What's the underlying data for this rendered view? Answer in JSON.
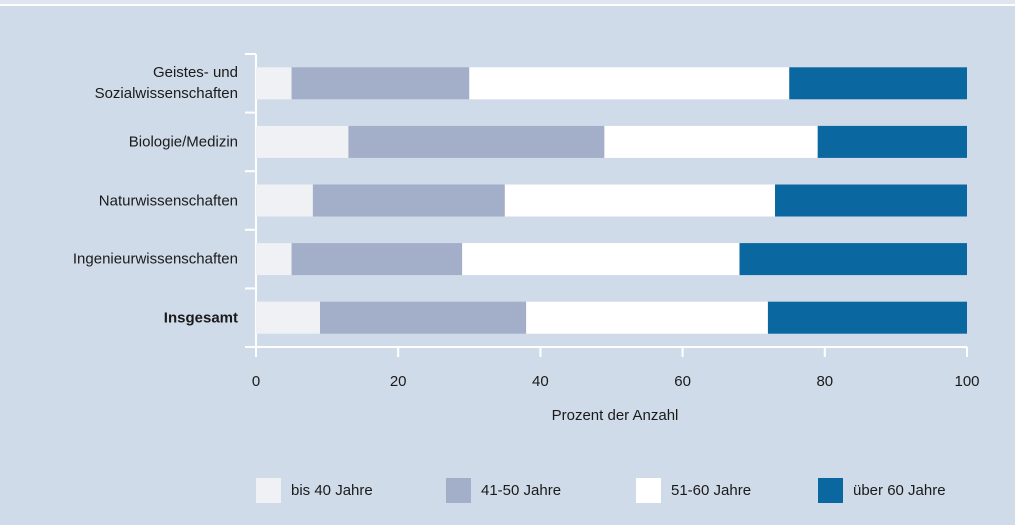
{
  "chart_data": {
    "type": "stacked_bar_horizontal",
    "categories": [
      "Geistes- und\nSozialwissenschaften",
      "Biologie/Medizin",
      "Naturwissenschaften",
      "Ingenieurwissenschaften",
      "Insgesamt"
    ],
    "series": [
      {
        "name": "bis 40 Jahre",
        "color": "#f0f1f4",
        "values": [
          5,
          13,
          8,
          5,
          9
        ]
      },
      {
        "name": "41-50 Jahre",
        "color": "#a3aec9",
        "values": [
          25,
          36,
          27,
          24,
          29
        ]
      },
      {
        "name": "51-60 Jahre",
        "color": "#ffffff",
        "values": [
          45,
          30,
          38,
          39,
          34
        ]
      },
      {
        "name": "über 60 Jahre",
        "color": "#0b67a0",
        "values": [
          25,
          21,
          27,
          32,
          28
        ]
      }
    ],
    "xlabel": "Prozent der Anzahl",
    "xlim": [
      0,
      100
    ],
    "xticks": [
      0,
      20,
      40,
      60,
      80,
      100
    ]
  }
}
